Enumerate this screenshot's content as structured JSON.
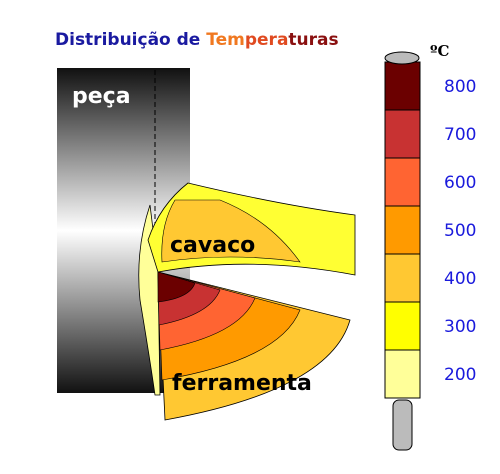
{
  "title_parts": [
    {
      "text": "Distribuição de ",
      "color": "#1a1aa0"
    },
    {
      "text": "Tem",
      "color": "#f07820"
    },
    {
      "text": "pera",
      "color": "#e04a20"
    },
    {
      "text": "turas",
      "color": "#8a1010"
    }
  ],
  "labels": {
    "workpiece": "peça",
    "chip": "cavaco",
    "tool": "ferramenta"
  },
  "scale": {
    "unit": "ºC",
    "labels": [
      800,
      700,
      600,
      500,
      400,
      300,
      200
    ],
    "colors": [
      "#6b0000",
      "#c83232",
      "#ff6432",
      "#ff9a00",
      "#ffc832",
      "#ffff00",
      "#ffff99"
    ]
  }
}
